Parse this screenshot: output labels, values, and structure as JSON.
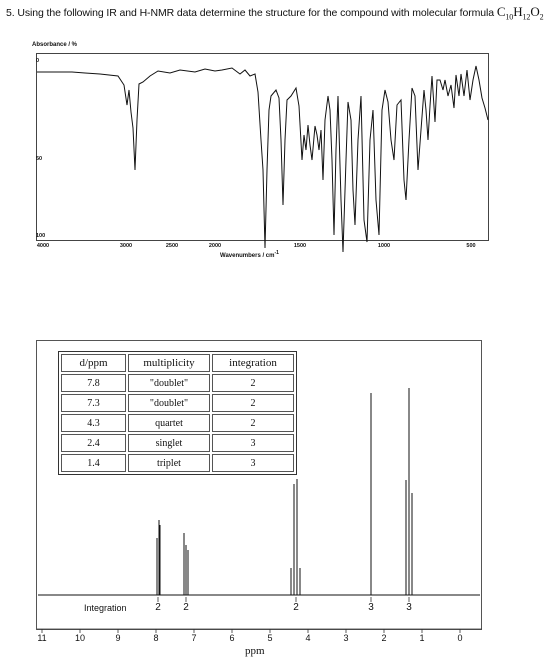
{
  "question": {
    "text": "5.  Using the following IR and H-NMR data determine the structure for the compound with molecular formula",
    "formula": {
      "c": "C",
      "c_sub": "10",
      "h": "H",
      "h_sub": "12",
      "o": "O",
      "o_sub": "2"
    }
  },
  "ir": {
    "y_label": "Absorbance / %",
    "y_ticks": [
      "0",
      "50",
      "100"
    ],
    "x_ticks": [
      "4000",
      "3000",
      "2500",
      "2000",
      "1500",
      "1000",
      "500"
    ],
    "x_label": "Wavenumbers / cm",
    "x_label_sup": "-1"
  },
  "nmr_table": {
    "headers": [
      "d/ppm",
      "multiplicity",
      "integration"
    ],
    "rows": [
      [
        "7.8",
        "\"doublet\"",
        "2"
      ],
      [
        "7.3",
        "\"doublet\"",
        "2"
      ],
      [
        "4.3",
        "quartet",
        "2"
      ],
      [
        "2.4",
        "singlet",
        "3"
      ],
      [
        "1.4",
        "triplet",
        "3"
      ]
    ]
  },
  "nmr": {
    "integration_label": "Integration",
    "integration_values": [
      "2",
      "2",
      "2",
      "3",
      "3"
    ],
    "x_ticks": [
      "11",
      "10",
      "9",
      "8",
      "7",
      "6",
      "5",
      "4",
      "3",
      "2",
      "1",
      "0"
    ],
    "x_label": "ppm",
    "peaks_ppm": [
      7.8,
      7.3,
      4.3,
      2.4,
      1.4
    ]
  }
}
